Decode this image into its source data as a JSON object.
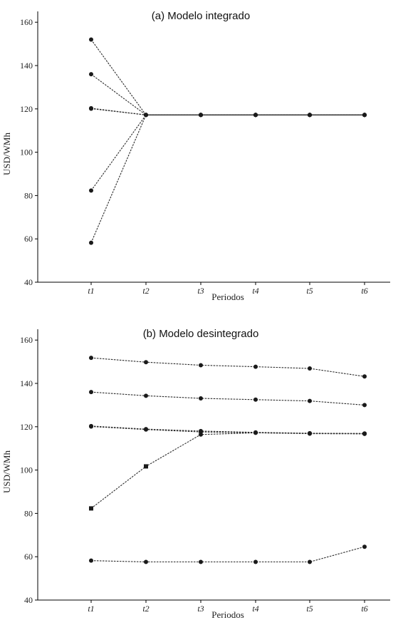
{
  "chart_data": [
    {
      "type": "line",
      "title": "(a) Modelo integrado",
      "xlabel": "Periodos",
      "ylabel": "USD/WMh",
      "categories": [
        "t1",
        "t2",
        "t3",
        "t4",
        "t5",
        "t6"
      ],
      "ylim": [
        40,
        165
      ],
      "yticks": [
        40,
        60,
        80,
        100,
        120,
        140,
        160
      ],
      "grid": false,
      "series": [
        {
          "values": [
            152,
            117.2,
            117.2,
            117.2,
            117.2,
            117.2
          ],
          "marker": "circle"
        },
        {
          "values": [
            136,
            117.2,
            117.2,
            117.2,
            117.2,
            117.2
          ],
          "marker": "circle"
        },
        {
          "values": [
            120.3,
            117.2,
            117.2,
            117.2,
            117.2,
            117.2
          ],
          "marker": "circle"
        },
        {
          "values": [
            120.1,
            117.2,
            117.2,
            117.2,
            117.2,
            117.2
          ],
          "marker": "circle"
        },
        {
          "values": [
            82.3,
            117.2,
            117.2,
            117.2,
            117.2,
            117.2
          ],
          "marker": "circle"
        },
        {
          "values": [
            58.2,
            117.2,
            117.2,
            117.2,
            117.2,
            117.2
          ],
          "marker": "circle"
        }
      ]
    },
    {
      "type": "line",
      "title": "(b) Modelo desintegrado",
      "xlabel": "Periodos",
      "ylabel": "USD/WMh",
      "categories": [
        "t1",
        "t2",
        "t3",
        "t4",
        "t5",
        "t6"
      ],
      "ylim": [
        40,
        165
      ],
      "yticks": [
        40,
        60,
        80,
        100,
        120,
        140,
        160
      ],
      "grid": false,
      "series": [
        {
          "values": [
            151.8,
            149.8,
            148.4,
            147.7,
            146.9,
            143.2
          ],
          "marker": "circle"
        },
        {
          "values": [
            136,
            134.3,
            133.1,
            132.5,
            131.9,
            130
          ],
          "marker": "circle"
        },
        {
          "values": [
            120.3,
            118.9,
            118,
            117.4,
            117,
            116.9
          ],
          "marker": "circle"
        },
        {
          "values": [
            120.1,
            118.7,
            117.6,
            117.2,
            116.8,
            116.7
          ],
          "marker": "circle"
        },
        {
          "values": [
            82.3,
            101.7,
            116.4,
            117.2,
            116.9,
            116.8
          ],
          "marker": "square"
        },
        {
          "values": [
            58.2,
            57.6,
            57.6,
            57.6,
            57.6,
            64.6
          ],
          "marker": "circle"
        }
      ]
    }
  ]
}
